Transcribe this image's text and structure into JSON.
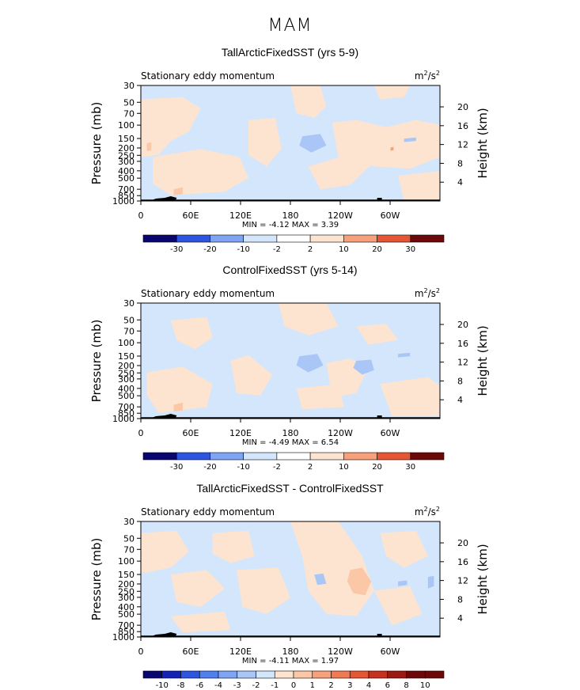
{
  "figure": {
    "title": "MAM"
  },
  "colors": {
    "scale": [
      "#08066f",
      "#1422b8",
      "#2d55e0",
      "#4f80f0",
      "#7ea4f3",
      "#a9c6f7",
      "#d4e6fb",
      "#fde4d0",
      "#fbc7a7",
      "#f7a07c",
      "#f17a54",
      "#e65534",
      "#c7321f",
      "#9c1a12",
      "#6d0808"
    ],
    "background": "#ffffff"
  },
  "chart_data": [
    {
      "type": "heatmap",
      "title": "TallArcticFixedSST (yrs 5-9)",
      "left_label": "Stationary eddy momentum",
      "units": "m²/s²",
      "ylabel": "Pressure (mb)",
      "y2label": "Height (km)",
      "y_ticks": [
        "30",
        "50",
        "70",
        "100",
        "150",
        "200",
        "250",
        "300",
        "400",
        "500",
        "700",
        "850",
        "1000"
      ],
      "y2_ticks": [
        "20",
        "16",
        "12",
        "8",
        "4"
      ],
      "x_ticks": [
        "0",
        "60E",
        "120E",
        "180",
        "120W",
        "60W"
      ],
      "stats": "MIN =    -4.12   MAX =    3.39",
      "colorbar_labels": [
        "-30",
        "-20",
        "-10",
        "-2",
        "2",
        "10",
        "20",
        "30"
      ],
      "levels": [
        -30,
        -20,
        -10,
        -2,
        2,
        10,
        20,
        30
      ],
      "min": -4.12,
      "max": 3.39,
      "ylim": [
        1000,
        30
      ],
      "log_y": true
    },
    {
      "type": "heatmap",
      "title": "ControlFixedSST (yrs 5-14)",
      "left_label": "Stationary eddy momentum",
      "units": "m²/s²",
      "ylabel": "Pressure (mb)",
      "y2label": "Height (km)",
      "y_ticks": [
        "30",
        "50",
        "70",
        "100",
        "150",
        "200",
        "250",
        "300",
        "400",
        "500",
        "700",
        "850",
        "1000"
      ],
      "y2_ticks": [
        "20",
        "16",
        "12",
        "8",
        "4"
      ],
      "x_ticks": [
        "0",
        "60E",
        "120E",
        "180",
        "120W",
        "60W"
      ],
      "stats": "MIN =    -4.49   MAX =    6.54",
      "colorbar_labels": [
        "-30",
        "-20",
        "-10",
        "-2",
        "2",
        "10",
        "20",
        "30"
      ],
      "levels": [
        -30,
        -20,
        -10,
        -2,
        2,
        10,
        20,
        30
      ],
      "min": -4.49,
      "max": 6.54,
      "ylim": [
        1000,
        30
      ],
      "log_y": true
    },
    {
      "type": "heatmap",
      "title": "TallArcticFixedSST - ControlFixedSST",
      "left_label": "Stationary eddy momentum",
      "units": "m²/s²",
      "ylabel": "Pressure (mb)",
      "y2label": "Height (km)",
      "y_ticks": [
        "30",
        "50",
        "70",
        "100",
        "150",
        "200",
        "250",
        "300",
        "400",
        "500",
        "700",
        "850",
        "1000"
      ],
      "y2_ticks": [
        "20",
        "16",
        "12",
        "8",
        "4"
      ],
      "x_ticks": [
        "0",
        "60E",
        "120E",
        "180",
        "120W",
        "60W"
      ],
      "stats": "MIN =    -4.11   MAX =    1.97",
      "colorbar_labels": [
        "-10",
        "-8",
        "-6",
        "-4",
        "-3",
        "-2",
        "-1",
        "0",
        "1",
        "2",
        "3",
        "4",
        "6",
        "8",
        "10"
      ],
      "levels": [
        -10,
        -8,
        -6,
        -4,
        -3,
        -2,
        -1,
        0,
        1,
        2,
        3,
        4,
        6,
        8,
        10
      ],
      "min": -4.11,
      "max": 1.97,
      "ylim": [
        1000,
        30
      ],
      "log_y": true
    }
  ]
}
